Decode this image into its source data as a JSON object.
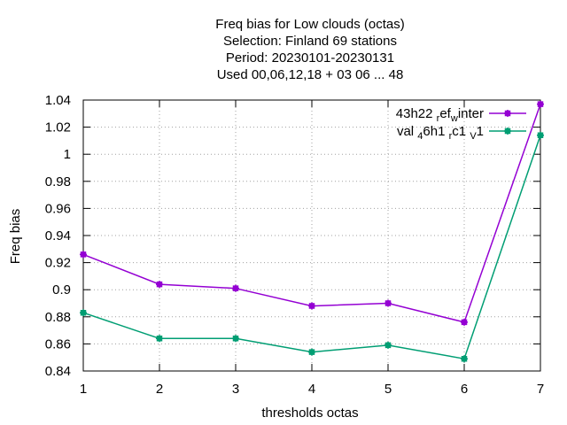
{
  "chart_data": {
    "type": "line",
    "title_lines": [
      "Freq bias  for Low clouds (octas)",
      "Selection: Finland     69 stations",
      "Period: 20230101-20230131",
      "Used  00,06,12,18  + 03 06 ... 48"
    ],
    "xlabel": "thresholds octas",
    "ylabel": "Freq bias",
    "x": [
      1,
      2,
      3,
      4,
      5,
      6,
      7
    ],
    "xlim": [
      1,
      7
    ],
    "ylim": [
      0.84,
      1.04
    ],
    "xticks": [
      1,
      2,
      3,
      4,
      5,
      6,
      7
    ],
    "yticks": [
      0.84,
      0.86,
      0.88,
      0.9,
      0.92,
      0.94,
      0.96,
      0.98,
      1,
      1.02,
      1.04
    ],
    "ytick_labels": [
      "0.84",
      "0.86",
      "0.88",
      "0.9",
      "0.92",
      "0.94",
      "0.96",
      "0.98",
      "1",
      "1.02",
      "1.04"
    ],
    "grid": true,
    "legend_position": "top-right",
    "series": [
      {
        "legend_parts": [
          [
            "43h22 ",
            ""
          ],
          [
            "r",
            "sub"
          ],
          [
            "ef",
            ""
          ],
          [
            "w",
            "sub"
          ],
          [
            "inter",
            ""
          ]
        ],
        "color": "#9400d3",
        "values": [
          0.926,
          0.904,
          0.901,
          0.888,
          0.89,
          0.876,
          1.037
        ]
      },
      {
        "legend_parts": [
          [
            "val ",
            ""
          ],
          [
            "4",
            "sub"
          ],
          [
            "6h1 ",
            ""
          ],
          [
            "r",
            "sub"
          ],
          [
            "c1 ",
            ""
          ],
          [
            "V",
            "sub"
          ],
          [
            "1",
            ""
          ]
        ],
        "color": "#009e73",
        "values": [
          0.883,
          0.864,
          0.864,
          0.854,
          0.859,
          0.849,
          1.014
        ]
      }
    ]
  }
}
